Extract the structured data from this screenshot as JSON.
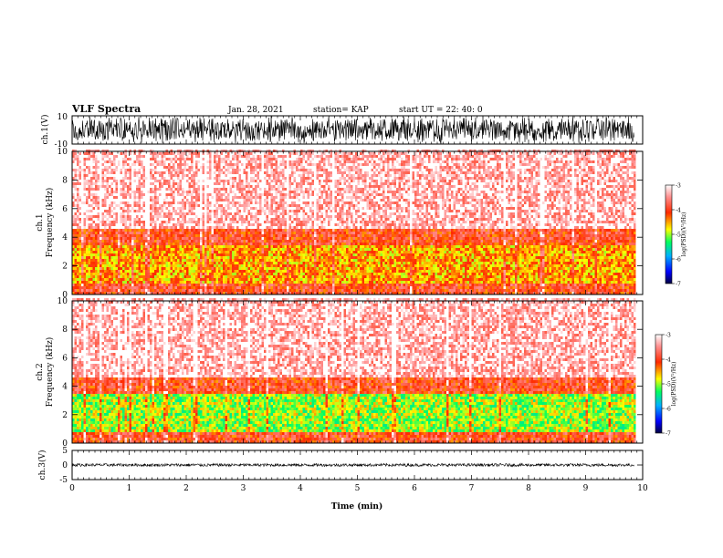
{
  "header": {
    "title": "VLF Spectra",
    "date": "Jan. 28, 2021",
    "station": "station= KAP",
    "start_ut": "start UT =  22: 40: 0"
  },
  "chart_data": [
    {
      "type": "line",
      "name": "ch1-waveform",
      "ylabel": "ch.1(V)",
      "ylim": [
        -10,
        10
      ],
      "ytick_labels": [
        "10",
        "-10"
      ],
      "x_unit": "min",
      "xlim": [
        0,
        10
      ],
      "data_extent_x": [
        0,
        9.85
      ],
      "amplitude_range": [
        -10,
        10
      ]
    },
    {
      "type": "heatmap",
      "name": "ch1-spectrogram",
      "ylabel_line1": "ch.1",
      "ylabel_line2": "Frequency (kHz)",
      "ylim": [
        0,
        10
      ],
      "ytick_labels": [
        "0",
        "2",
        "4",
        "6",
        "8",
        "10"
      ],
      "xlim": [
        0,
        10
      ],
      "data_extent_x": [
        0,
        9.85
      ],
      "bands": [
        {
          "freq_khz": [
            0.0,
            0.7
          ],
          "level": -4.0
        },
        {
          "freq_khz": [
            0.7,
            3.3
          ],
          "level": -4.5
        },
        {
          "freq_khz": [
            3.3,
            4.4
          ],
          "level": -4.0
        },
        {
          "freq_khz": [
            4.4,
            10.0
          ],
          "level": -3.3
        }
      ],
      "colorbar": {
        "range": [
          -7,
          -3
        ],
        "tick_labels": [
          "-3",
          "-4",
          "-5",
          "-6",
          "-7"
        ],
        "label": "log(PSD)(V²/Hz)"
      }
    },
    {
      "type": "heatmap",
      "name": "ch2-spectrogram",
      "ylabel_line1": "ch.2",
      "ylabel_line2": "Frequency (kHz)",
      "ylim": [
        0,
        10
      ],
      "ytick_labels": [
        "0",
        "2",
        "4",
        "6",
        "8",
        "10"
      ],
      "xlim": [
        0,
        10
      ],
      "data_extent_x": [
        0,
        9.85
      ],
      "bands": [
        {
          "freq_khz": [
            0.0,
            0.6
          ],
          "level": -4.0
        },
        {
          "freq_khz": [
            0.6,
            3.4
          ],
          "level": -5.0
        },
        {
          "freq_khz": [
            3.4,
            4.5
          ],
          "level": -4.0
        },
        {
          "freq_khz": [
            4.5,
            10.0
          ],
          "level": -3.3
        }
      ],
      "colorbar": {
        "range": [
          -7,
          -3
        ],
        "tick_labels": [
          "-3",
          "-4",
          "-5",
          "-6",
          "-7"
        ],
        "label": "log(PSD)(V²/Hz)"
      }
    },
    {
      "type": "line",
      "name": "ch3-waveform",
      "ylabel": "ch.3(V)",
      "ylim": [
        -5,
        5
      ],
      "ytick_labels": [
        "5",
        "0",
        "-5"
      ],
      "xlim": [
        0,
        10
      ],
      "data_extent_x": [
        0,
        9.85
      ],
      "amplitude_range": [
        -0.5,
        0.5
      ],
      "xlabel": "Time (min)",
      "xtick_labels": [
        "0",
        "1",
        "2",
        "3",
        "4",
        "5",
        "6",
        "7",
        "8",
        "9",
        "10"
      ]
    }
  ]
}
